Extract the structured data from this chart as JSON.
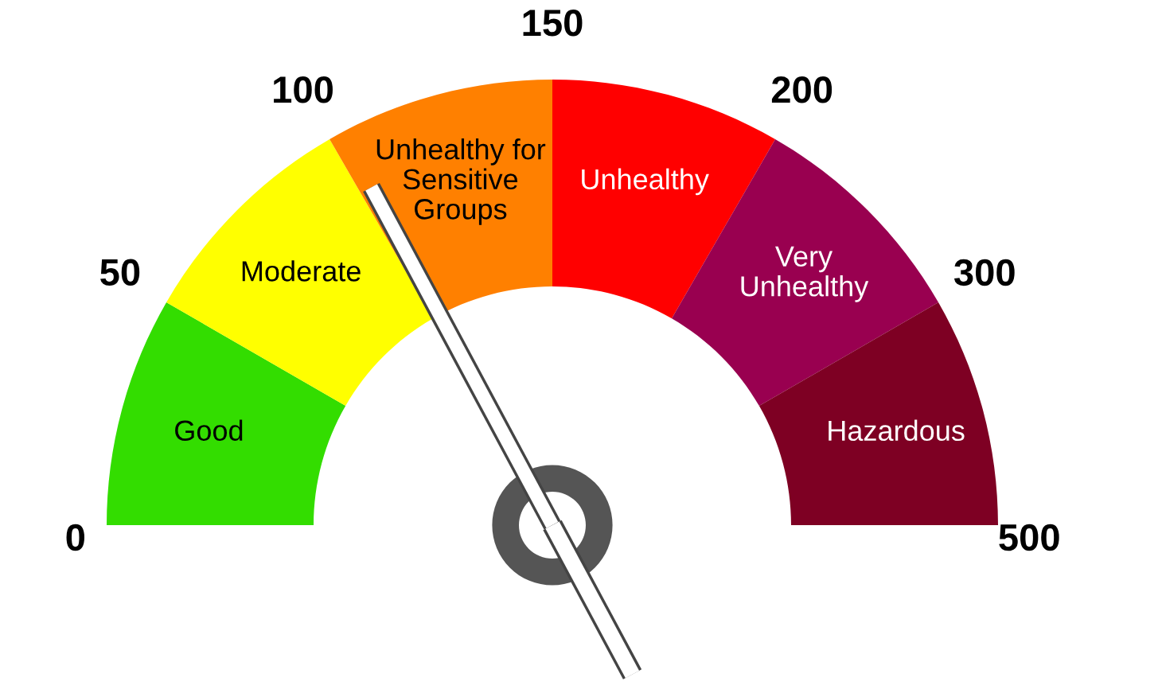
{
  "chart_data": {
    "type": "donut",
    "categories": [
      "Good",
      "Moderate",
      "Unhealthy for\nSensitive\nGroups",
      "Unhealthy",
      "Very\nUnhealthy",
      "Hazardous"
    ],
    "values": [
      16.67,
      16.67,
      16.66,
      16.67,
      16.67,
      16.66
    ],
    "colors": [
      "#33dd00",
      "#ffff00",
      "#ff8000",
      "#ff0000",
      "#990050",
      "#7e0023"
    ],
    "needle": "Unhealthy for\nSensitive\nGroups",
    "annotations": [
      "0",
      "50",
      "100",
      "150",
      "200",
      "300",
      "500"
    ]
  }
}
